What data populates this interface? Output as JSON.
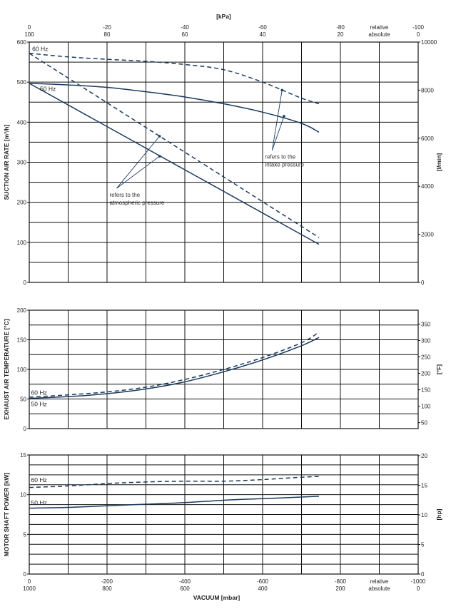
{
  "top_axis": {
    "title": "[kPa]",
    "labels": [
      {
        "v": 0,
        "line1": "0",
        "line2": "100"
      },
      {
        "v": -200,
        "line1": "-20",
        "line2": "80"
      },
      {
        "v": -400,
        "line1": "-40",
        "line2": "60"
      },
      {
        "v": -600,
        "line1": "-60",
        "line2": "40"
      },
      {
        "v": -800,
        "line1": "-80",
        "line2": "20"
      },
      {
        "v": -900,
        "line1": "relative",
        "line2": "absolute"
      },
      {
        "v": -1000,
        "line1": "-100",
        "line2": "0"
      }
    ]
  },
  "bottom_axis": {
    "title": "VACUUM  [mbar]",
    "labels": [
      {
        "v": 0,
        "line1": "0",
        "line2": "1000"
      },
      {
        "v": -200,
        "line1": "-200",
        "line2": "800"
      },
      {
        "v": -400,
        "line1": "-400",
        "line2": "600"
      },
      {
        "v": -600,
        "line1": "-600",
        "line2": "400"
      },
      {
        "v": -800,
        "line1": "-800",
        "line2": "200"
      },
      {
        "v": -900,
        "line1": "relative",
        "line2": "absolute"
      },
      {
        "v": -1000,
        "line1": "-1000",
        "line2": "0"
      }
    ]
  },
  "chart_data": [
    {
      "type": "line",
      "id": "suction",
      "ylabel": "SUCTION AIR RATE  [m³/h]",
      "ylabel_right": "[l/min]",
      "xlim": [
        0,
        -1000
      ],
      "ylim": [
        0,
        600
      ],
      "yticks": [
        0,
        100,
        200,
        300,
        400,
        500,
        600
      ],
      "yticks_right": [
        0,
        2000,
        4000,
        6000,
        8000,
        10000
      ],
      "right_factor": 16.6667,
      "annotations": [
        {
          "text": [
            "refers to the",
            "intake pressure"
          ],
          "anchor_x": -610,
          "anchor_y": 330,
          "targets": [
            [
              -650,
              480
            ],
            [
              -655,
              415
            ]
          ]
        },
        {
          "text": [
            "refers to the",
            "atmospheric pressure"
          ],
          "anchor_x": -210,
          "anchor_y": 235,
          "targets": [
            [
              -335,
              365
            ],
            [
              -335,
              315
            ]
          ]
        }
      ],
      "series": [
        {
          "name": "60 Hz",
          "style": "dashed",
          "label_at": [
            -28,
            578
          ],
          "x": [
            0,
            -100,
            -200,
            -300,
            -400,
            -500,
            -600,
            -700,
            -745
          ],
          "y": [
            572,
            563,
            557,
            552,
            544,
            531,
            500,
            460,
            446
          ]
        },
        {
          "name": "50 Hz",
          "style": "solid",
          "label_at": [
            -48,
            478
          ],
          "x": [
            0,
            -100,
            -200,
            -300,
            -400,
            -500,
            -600,
            -700,
            -745
          ],
          "y": [
            497,
            493,
            487,
            476,
            463,
            446,
            425,
            397,
            375
          ]
        },
        {
          "name": "60 Hz atm",
          "style": "dashed",
          "x": [
            0,
            -745
          ],
          "y": [
            572,
            112
          ]
        },
        {
          "name": "50 Hz atm",
          "style": "solid",
          "x": [
            0,
            -745
          ],
          "y": [
            497,
            95
          ]
        }
      ]
    },
    {
      "type": "line",
      "id": "temperature",
      "ylabel": "EXHAUST AIR TEMPERATURE  [°C]",
      "ylabel_right": "[°F]",
      "xlim": [
        0,
        -1000
      ],
      "ylim": [
        0,
        200
      ],
      "yticks": [
        0,
        50,
        100,
        150,
        200
      ],
      "yticks_right": [
        50,
        100,
        150,
        200,
        250,
        300,
        350
      ],
      "right_map": "fahrenheit",
      "series": [
        {
          "name": "60 Hz",
          "style": "dashed",
          "label_at": [
            -25,
            57
          ],
          "x": [
            0,
            -100,
            -200,
            -300,
            -400,
            -500,
            -600,
            -700,
            -745
          ],
          "y": [
            53,
            57,
            62,
            70,
            83,
            100,
            120,
            145,
            163
          ]
        },
        {
          "name": "50 Hz",
          "style": "solid",
          "label_at": [
            -25,
            38
          ],
          "x": [
            0,
            -100,
            -200,
            -300,
            -400,
            -500,
            -600,
            -700,
            -745
          ],
          "y": [
            51,
            54,
            59,
            67,
            79,
            96,
            116,
            140,
            154
          ]
        }
      ]
    },
    {
      "type": "line",
      "id": "power",
      "ylabel": "MOTOR SHAFT POWER  [kW]",
      "ylabel_right": "[hp]",
      "xlim": [
        0,
        -1000
      ],
      "ylim": [
        0,
        15
      ],
      "yticks": [
        0,
        5,
        10,
        15
      ],
      "yticks_right": [
        0,
        5,
        10,
        15,
        20
      ],
      "right_factor": 1.341,
      "series": [
        {
          "name": "60 Hz",
          "style": "dashed",
          "label_at": [
            -25,
            11.6
          ],
          "x": [
            0,
            -100,
            -200,
            -300,
            -400,
            -500,
            -600,
            -700,
            -745
          ],
          "y": [
            10.9,
            11.1,
            11.4,
            11.6,
            11.7,
            11.7,
            11.9,
            12.2,
            12.3
          ]
        },
        {
          "name": "50 Hz",
          "style": "solid",
          "label_at": [
            -25,
            8.7
          ],
          "x": [
            0,
            -100,
            -200,
            -300,
            -400,
            -500,
            -600,
            -700,
            -745
          ],
          "y": [
            8.3,
            8.4,
            8.6,
            8.8,
            9.0,
            9.3,
            9.5,
            9.7,
            9.8
          ]
        }
      ]
    }
  ]
}
